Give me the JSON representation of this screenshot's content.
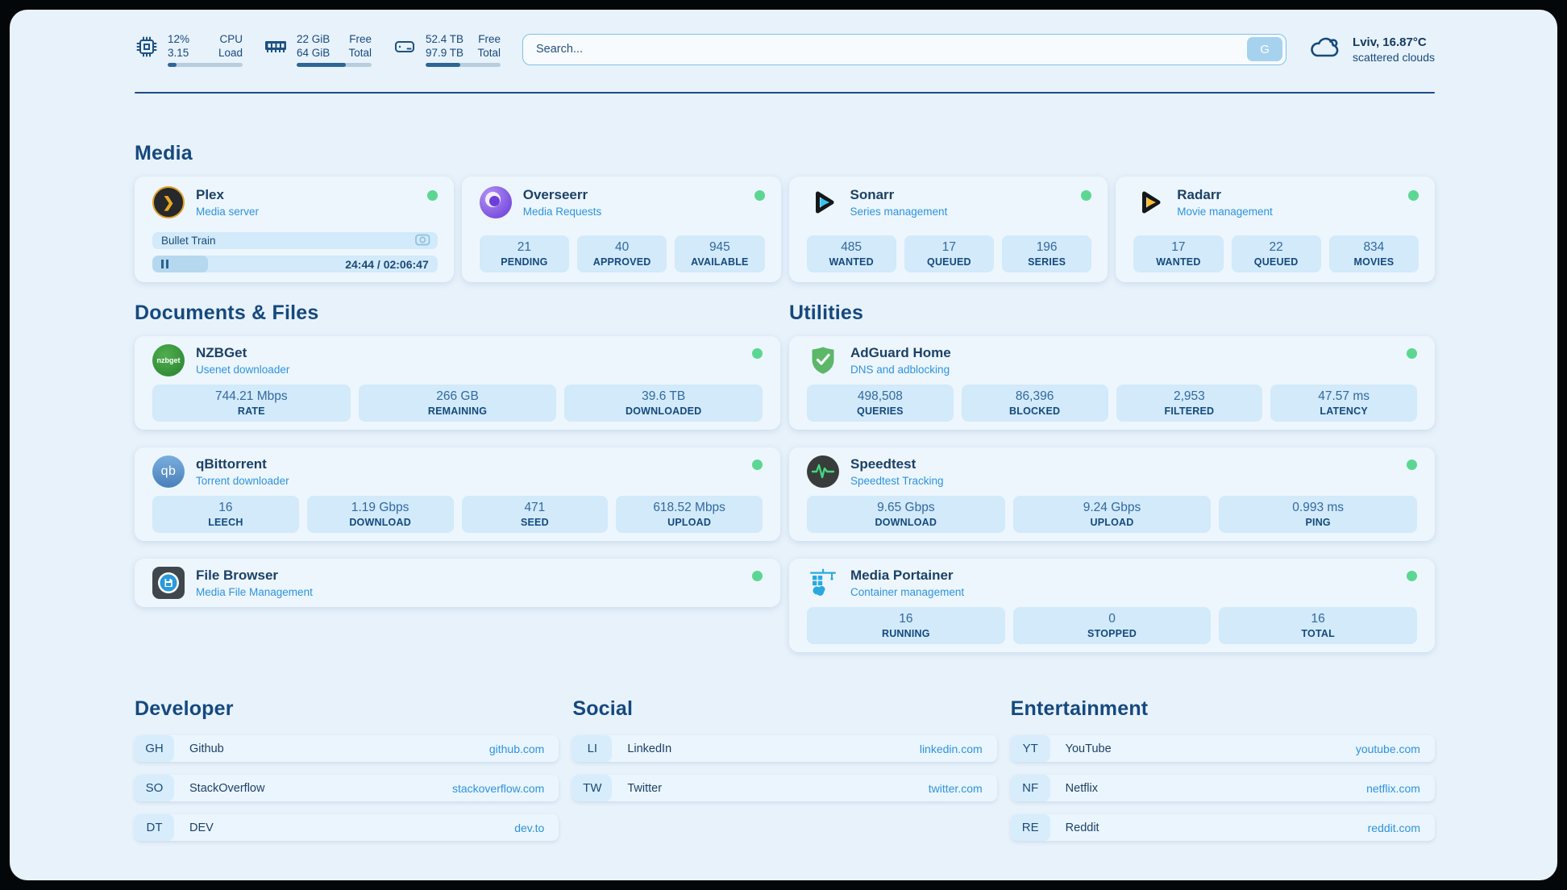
{
  "topbar": {
    "widgets": [
      {
        "icon": "cpu-icon",
        "value_top": "12%",
        "value_bottom": "3.15",
        "label_top": "CPU",
        "label_bottom": "Load",
        "progress_pct": 12
      },
      {
        "icon": "ram-icon",
        "value_top": "22 GiB",
        "value_bottom": "64 GiB",
        "label_top": "Free",
        "label_bottom": "Total",
        "progress_pct": 66
      },
      {
        "icon": "disk-icon",
        "value_top": "52.4 TB",
        "value_bottom": "97.9 TB",
        "label_top": "Free",
        "label_bottom": "Total",
        "progress_pct": 46
      }
    ],
    "search": {
      "placeholder": "Search...",
      "button_label": "G"
    },
    "weather": {
      "location": "Lviv, 16.87°C",
      "condition": "scattered clouds"
    }
  },
  "sections": {
    "media": {
      "title": "Media",
      "cards": [
        {
          "name": "Plex",
          "description": "Media server",
          "now_playing": {
            "title": "Bullet Train",
            "time": "24:44 / 02:06:47",
            "progress_pct": 19.5
          }
        },
        {
          "name": "Overseerr",
          "description": "Media Requests",
          "stats": [
            {
              "value": "21",
              "label": "PENDING"
            },
            {
              "value": "40",
              "label": "APPROVED"
            },
            {
              "value": "945",
              "label": "AVAILABLE"
            }
          ]
        },
        {
          "name": "Sonarr",
          "description": "Series management",
          "stats": [
            {
              "value": "485",
              "label": "WANTED"
            },
            {
              "value": "17",
              "label": "QUEUED"
            },
            {
              "value": "196",
              "label": "SERIES"
            }
          ]
        },
        {
          "name": "Radarr",
          "description": "Movie management",
          "stats": [
            {
              "value": "17",
              "label": "WANTED"
            },
            {
              "value": "22",
              "label": "QUEUED"
            },
            {
              "value": "834",
              "label": "MOVIES"
            }
          ]
        }
      ]
    },
    "documents": {
      "title": "Documents & Files",
      "cards": [
        {
          "name": "NZBGet",
          "description": "Usenet downloader",
          "stats": [
            {
              "value": "744.21 Mbps",
              "label": "RATE"
            },
            {
              "value": "266 GB",
              "label": "REMAINING"
            },
            {
              "value": "39.6 TB",
              "label": "DOWNLOADED"
            }
          ]
        },
        {
          "name": "qBittorrent",
          "description": "Torrent downloader",
          "stats": [
            {
              "value": "16",
              "label": "LEECH"
            },
            {
              "value": "1.19 Gbps",
              "label": "DOWNLOAD"
            },
            {
              "value": "471",
              "label": "SEED"
            },
            {
              "value": "618.52 Mbps",
              "label": "UPLOAD"
            }
          ]
        },
        {
          "name": "File Browser",
          "description": "Media File Management"
        }
      ]
    },
    "utilities": {
      "title": "Utilities",
      "cards": [
        {
          "name": "AdGuard Home",
          "description": "DNS and adblocking",
          "stats": [
            {
              "value": "498,508",
              "label": "QUERIES"
            },
            {
              "value": "86,396",
              "label": "BLOCKED"
            },
            {
              "value": "2,953",
              "label": "FILTERED"
            },
            {
              "value": "47.57 ms",
              "label": "LATENCY"
            }
          ]
        },
        {
          "name": "Speedtest",
          "description": "Speedtest Tracking",
          "stats": [
            {
              "value": "9.65 Gbps",
              "label": "DOWNLOAD"
            },
            {
              "value": "9.24 Gbps",
              "label": "UPLOAD"
            },
            {
              "value": "0.993 ms",
              "label": "PING"
            }
          ]
        },
        {
          "name": "Media Portainer",
          "description": "Container management",
          "stats": [
            {
              "value": "16",
              "label": "RUNNING"
            },
            {
              "value": "0",
              "label": "STOPPED"
            },
            {
              "value": "16",
              "label": "TOTAL"
            }
          ]
        }
      ]
    },
    "bookmarks": [
      {
        "title": "Developer",
        "items": [
          {
            "abbr": "GH",
            "name": "Github",
            "url": "github.com"
          },
          {
            "abbr": "SO",
            "name": "StackOverflow",
            "url": "stackoverflow.com"
          },
          {
            "abbr": "DT",
            "name": "DEV",
            "url": "dev.to"
          }
        ]
      },
      {
        "title": "Social",
        "items": [
          {
            "abbr": "LI",
            "name": "LinkedIn",
            "url": "linkedin.com"
          },
          {
            "abbr": "TW",
            "name": "Twitter",
            "url": "twitter.com"
          }
        ]
      },
      {
        "title": "Entertainment",
        "items": [
          {
            "abbr": "YT",
            "name": "YouTube",
            "url": "youtube.com"
          },
          {
            "abbr": "NF",
            "name": "Netflix",
            "url": "netflix.com"
          },
          {
            "abbr": "RE",
            "name": "Reddit",
            "url": "reddit.com"
          }
        ]
      }
    ]
  },
  "colors": {
    "status_green": "#5cd792",
    "link_blue": "#2d93de",
    "navy": "#17497e"
  }
}
